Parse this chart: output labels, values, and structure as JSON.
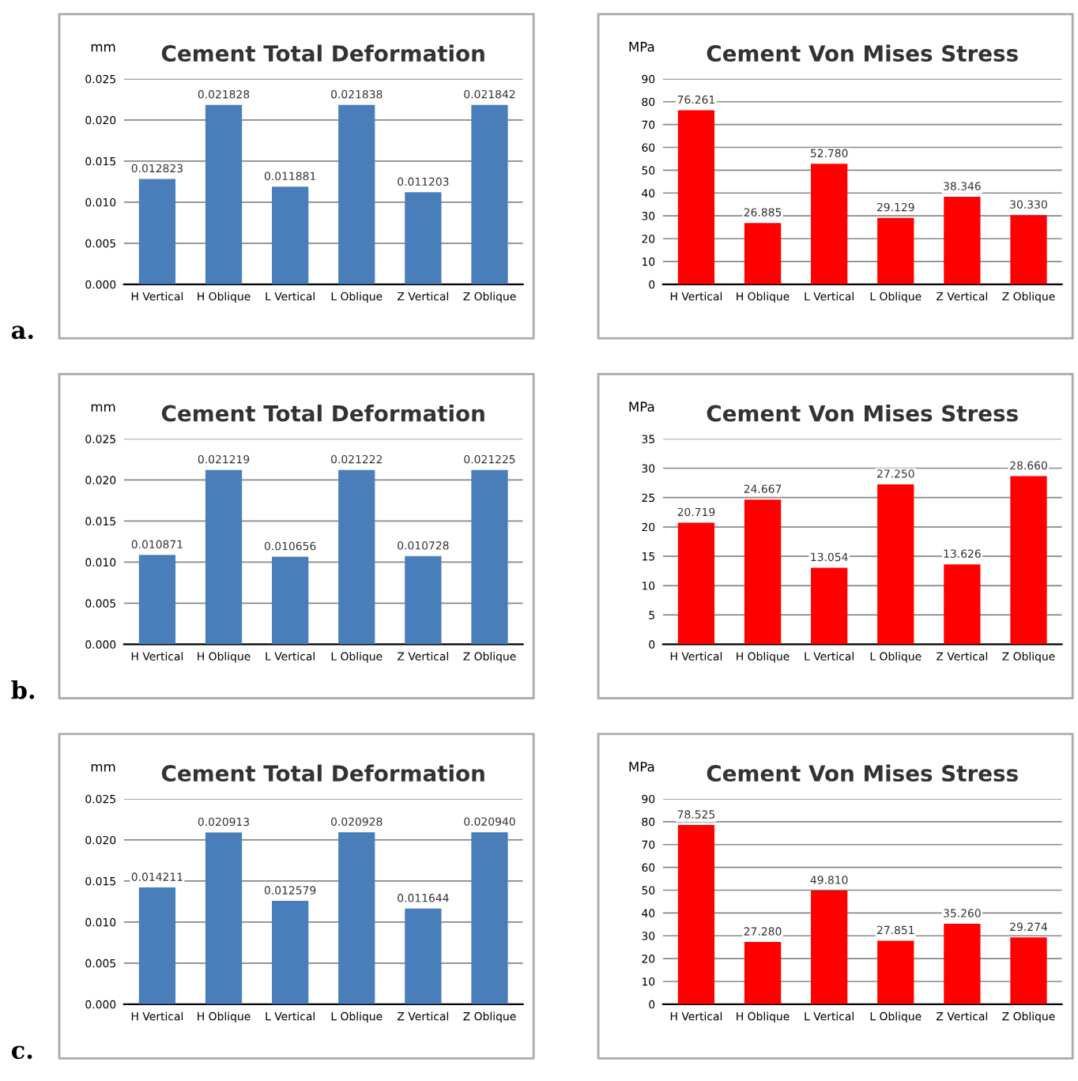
{
  "chart_data": [
    {
      "type": "bar",
      "title": "Cement Total Deformation",
      "ylabel": "mm",
      "annotations": [
        "a."
      ],
      "categories": [
        "H Vertical",
        "H Oblique",
        "L Vertical",
        "L Oblique",
        "Z Vertical",
        "Z Oblique"
      ],
      "values": [
        0.012823,
        0.021828,
        0.011881,
        0.021838,
        0.011203,
        0.021842
      ],
      "color": "#4a7ebb",
      "ylim": [
        0,
        0.025
      ],
      "yticks": [
        {
          "value": 0,
          "label": "0.000"
        },
        0.005,
        {
          "value": 0.01,
          "label": "0.010"
        },
        0.015,
        {
          "value": 0.02,
          "label": "0.020"
        },
        0.025
      ],
      "grid": "y",
      "data_labels": true
    },
    {
      "type": "bar",
      "title": "Cement Von Mises Stress",
      "ylabel": "MPa",
      "categories": [
        "H Vertical",
        "H Oblique",
        "L Vertical",
        "L Oblique",
        "Z Vertical",
        "Z Oblique"
      ],
      "values": [
        76.261,
        26.885,
        52.78,
        29.129,
        38.346,
        30.33
      ],
      "value_labels": [
        "76.261",
        "26.885",
        "52.780",
        "29.129",
        "38.346",
        "30.330"
      ],
      "color": "#ff0000",
      "ylim": [
        0,
        90
      ],
      "yticks": [
        0,
        10,
        20,
        30,
        40,
        50,
        60,
        70,
        80,
        90
      ],
      "grid": "y"
    },
    {
      "type": "bar",
      "title": "Cement Total Deformation",
      "ylabel": "mm",
      "annotations": [
        "b."
      ],
      "categories": [
        "H Vertical",
        "H Oblique",
        "L Vertical",
        "L Oblique",
        "Z Vertical",
        "Z Oblique"
      ],
      "values": [
        0.010871,
        0.021219,
        0.010656,
        0.021222,
        0.010728,
        0.021225
      ],
      "color": "#4a7ebb",
      "ylim": [
        0,
        0.025
      ],
      "yticks": [
        {
          "value": 0,
          "label": "0.000"
        },
        0.005,
        {
          "value": 0.01,
          "label": "0.010"
        },
        0.015,
        {
          "value": 0.02,
          "label": "0.020"
        },
        0.025
      ],
      "grid": "y",
      "data_labels": true
    },
    {
      "type": "bar",
      "title": "Cement Von Mises Stress",
      "ylabel": "MPa",
      "categories": [
        "H Vertical",
        "H Oblique",
        "L Vertical",
        "L Oblique",
        "Z Vertical",
        "Z Oblique"
      ],
      "values": [
        20.719,
        24.667,
        13.054,
        27.25,
        13.626,
        28.66
      ],
      "value_labels": [
        "20.719",
        "24.667",
        "13.054",
        "27.250",
        "13.626",
        "28.660"
      ],
      "color": "#ff0000",
      "ylim": [
        0,
        35
      ],
      "yticks": [
        0,
        5,
        10,
        15,
        20,
        25,
        30,
        35
      ],
      "grid": "y"
    },
    {
      "type": "bar",
      "title": "Cement Total Deformation",
      "ylabel": "mm",
      "annotations": [
        "c."
      ],
      "categories": [
        "H Vertical",
        "H Oblique",
        "L Vertical",
        "L Oblique",
        "Z Vertical",
        "Z Oblique"
      ],
      "values": [
        0.014211,
        0.020913,
        0.012579,
        0.020928,
        0.011644,
        0.02094
      ],
      "value_labels": [
        "0.014211",
        "0.020913",
        "0.012579",
        "0.020928",
        "0.011644",
        "0.020940"
      ],
      "color": "#4a7ebb",
      "ylim": [
        0,
        0.025
      ],
      "yticks": [
        {
          "value": 0,
          "label": "0.000"
        },
        0.005,
        {
          "value": 0.01,
          "label": "0.010"
        },
        0.015,
        {
          "value": 0.02,
          "label": "0.020"
        },
        0.025
      ],
      "grid": "y"
    },
    {
      "type": "bar",
      "title": "Cement Von Mises Stress",
      "ylabel": "MPa",
      "categories": [
        "H Vertical",
        "H Oblique",
        "L Vertical",
        "L Oblique",
        "Z Vertical",
        "Z Oblique"
      ],
      "values": [
        78.525,
        27.28,
        49.81,
        27.851,
        35.26,
        29.274
      ],
      "value_labels": [
        "78.525",
        "27.280",
        "49.810",
        "27.851",
        "35.260",
        "29.274"
      ],
      "color": "#ff0000",
      "ylim": [
        0,
        90
      ],
      "yticks": [
        0,
        10,
        20,
        30,
        40,
        50,
        60,
        70,
        80,
        90
      ],
      "grid": "y"
    }
  ]
}
